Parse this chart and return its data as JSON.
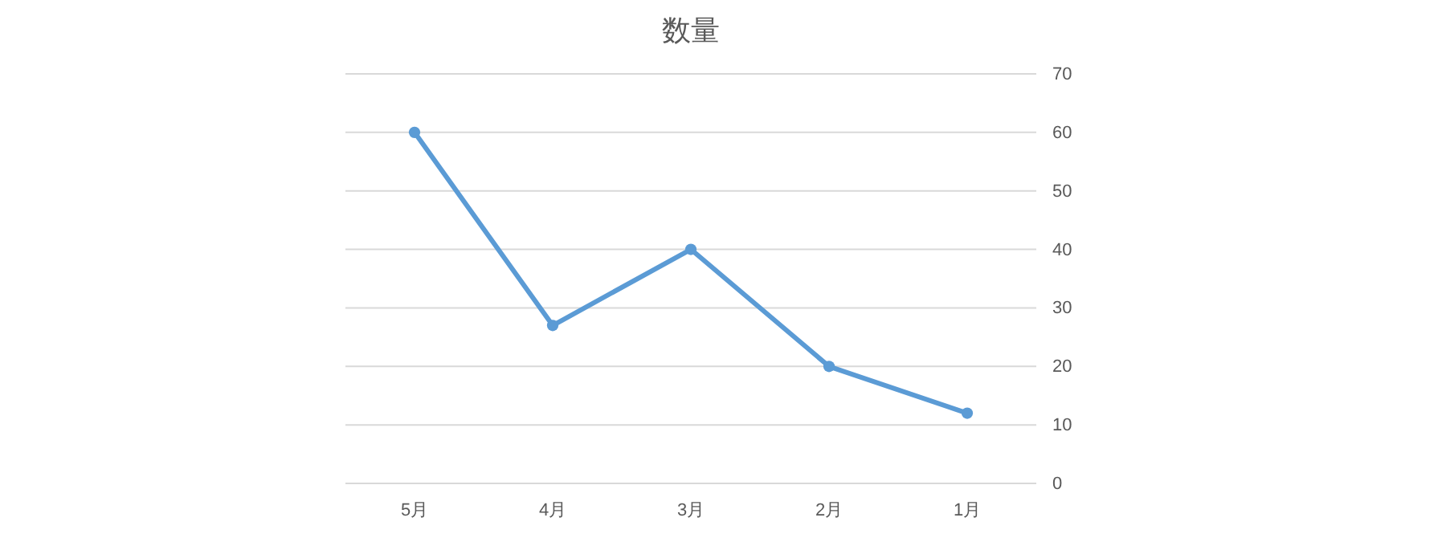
{
  "chart_data": {
    "type": "line",
    "title": "数量",
    "categories": [
      "5月",
      "4月",
      "3月",
      "2月",
      "1月"
    ],
    "series": [
      {
        "color": "#5b9bd5",
        "values": [
          60,
          27,
          40,
          20,
          12
        ]
      }
    ],
    "ylim": [
      0,
      70
    ],
    "yticks": [
      0,
      10,
      20,
      30,
      40,
      50,
      60,
      70
    ],
    "grid": "y",
    "marker": "circle",
    "line_style": "solid"
  }
}
